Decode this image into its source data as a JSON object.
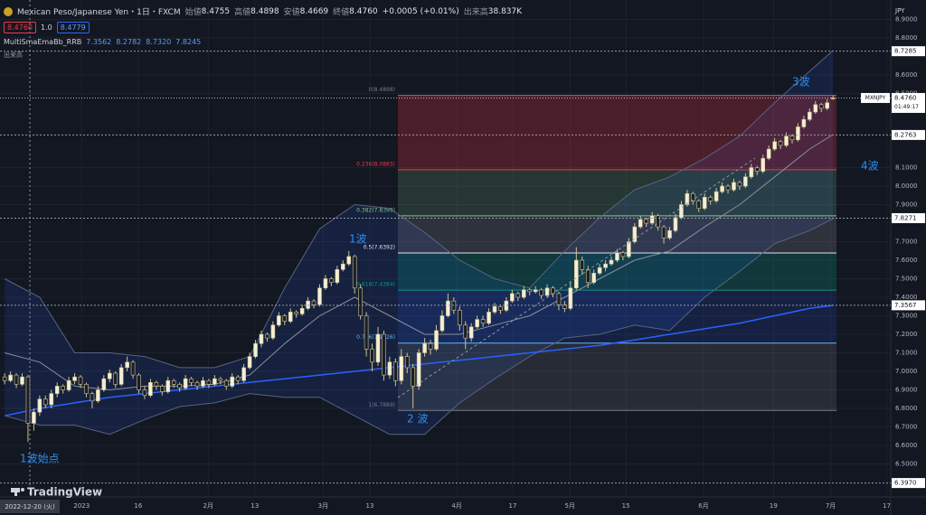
{
  "chart_data": {
    "type": "candlestick",
    "header": {
      "title": "Mexican Peso/Japanese Yen・1日・FXCM",
      "ohlc": [
        {
          "label": "始値",
          "value": "8.4755"
        },
        {
          "label": "高値",
          "value": "8.4898"
        },
        {
          "label": "安値",
          "value": "8.4669"
        },
        {
          "label": "終値",
          "value": "8.4760"
        }
      ],
      "change": "+0.0005 (+0.01%)",
      "volume_label": "出来高",
      "volume": "38.837K",
      "sell": "8.4760",
      "spread": "1.0",
      "buy": "8.4779",
      "indicator": "MultiSmaEmaBb_RRB",
      "indicator_values": [
        "7.3562",
        "8.2782",
        "8.7320",
        "7.8245"
      ],
      "volume_pane": "出来高"
    },
    "currency": "JPY",
    "xlim": [
      -0.8,
      151.9
    ],
    "ylim": [
      6.322,
      9.005
    ],
    "grid": true,
    "xticks": [
      {
        "value": 13.2,
        "label": "2023"
      },
      {
        "value": 22.9,
        "label": "16"
      },
      {
        "value": 34.9,
        "label": "2月"
      },
      {
        "value": 42.9,
        "label": "13"
      },
      {
        "value": 54.6,
        "label": "3月"
      },
      {
        "value": 62.6,
        "label": "13"
      },
      {
        "value": 77.5,
        "label": "4月"
      },
      {
        "value": 87.1,
        "label": "17"
      },
      {
        "value": 96.9,
        "label": "5月"
      },
      {
        "value": 106.5,
        "label": "15"
      },
      {
        "value": 119.8,
        "label": "6月"
      },
      {
        "value": 131.8,
        "label": "19"
      },
      {
        "value": 141.6,
        "label": "7月"
      },
      {
        "value": 151.2,
        "label": "17"
      }
    ],
    "yticks": [
      {
        "value": 8.9,
        "label": "8.9000"
      },
      {
        "value": 8.8,
        "label": "8.8000"
      },
      {
        "value": 8.6,
        "label": "8.6000"
      },
      {
        "value": 8.5,
        "label": "8.5000"
      },
      {
        "value": 8.1,
        "label": "8.1000"
      },
      {
        "value": 8.0,
        "label": "8.0000"
      },
      {
        "value": 7.9,
        "label": "7.9000"
      },
      {
        "value": 7.7,
        "label": "7.7000"
      },
      {
        "value": 7.6,
        "label": "7.6000"
      },
      {
        "value": 7.5,
        "label": "7.5000"
      },
      {
        "value": 7.4,
        "label": "7.4000"
      },
      {
        "value": 7.3,
        "label": "7.3000"
      },
      {
        "value": 7.2,
        "label": "7.2000"
      },
      {
        "value": 7.1,
        "label": "7.1000"
      },
      {
        "value": 7.0,
        "label": "7.0000"
      },
      {
        "value": 6.9,
        "label": "6.9000"
      },
      {
        "value": 6.8,
        "label": "6.8000"
      },
      {
        "value": 6.7,
        "label": "6.7000"
      },
      {
        "value": 6.6,
        "label": "6.6000"
      },
      {
        "value": 6.5,
        "label": "6.5000"
      }
    ],
    "up_color": "#f5efd6",
    "down_color": "#1b1d27",
    "wick_color": "#cfc48e",
    "candles": [
      [
        6.97,
        6.99,
        6.93,
        6.95
      ],
      [
        6.95,
        7.0,
        6.94,
        6.98
      ],
      [
        6.98,
        6.99,
        6.91,
        6.93
      ],
      [
        6.93,
        6.99,
        6.92,
        6.97
      ],
      [
        6.97,
        6.98,
        6.62,
        6.72
      ],
      [
        6.72,
        6.8,
        6.68,
        6.78
      ],
      [
        6.78,
        6.87,
        6.76,
        6.85
      ],
      [
        6.85,
        6.87,
        6.8,
        6.82
      ],
      [
        6.82,
        6.9,
        6.8,
        6.88
      ],
      [
        6.88,
        6.94,
        6.86,
        6.92
      ],
      [
        6.92,
        6.93,
        6.88,
        6.9
      ],
      [
        6.9,
        6.97,
        6.89,
        6.95
      ],
      [
        6.95,
        6.99,
        6.93,
        6.97
      ],
      [
        6.97,
        6.98,
        6.91,
        6.93
      ],
      [
        6.93,
        6.94,
        6.86,
        6.88
      ],
      [
        6.88,
        6.89,
        6.8,
        6.84
      ],
      [
        6.84,
        6.92,
        6.83,
        6.9
      ],
      [
        6.9,
        6.98,
        6.89,
        6.96
      ],
      [
        6.96,
        7.01,
        6.94,
        6.99
      ],
      [
        6.99,
        7.0,
        6.91,
        6.93
      ],
      [
        6.93,
        7.04,
        6.92,
        7.02
      ],
      [
        7.02,
        7.08,
        7.0,
        7.05
      ],
      [
        7.05,
        7.06,
        6.96,
        6.98
      ],
      [
        6.98,
        6.99,
        6.88,
        6.9
      ],
      [
        6.9,
        6.92,
        6.85,
        6.87
      ],
      [
        6.87,
        6.96,
        6.86,
        6.94
      ],
      [
        6.94,
        6.95,
        6.9,
        6.92
      ],
      [
        6.92,
        6.93,
        6.87,
        6.89
      ],
      [
        6.89,
        6.97,
        6.88,
        6.95
      ],
      [
        6.95,
        6.96,
        6.91,
        6.93
      ],
      [
        6.93,
        6.94,
        6.89,
        6.91
      ],
      [
        6.91,
        6.98,
        6.9,
        6.96
      ],
      [
        6.96,
        6.97,
        6.92,
        6.94
      ],
      [
        6.94,
        6.95,
        6.9,
        6.92
      ],
      [
        6.92,
        6.97,
        6.91,
        6.95
      ],
      [
        6.95,
        6.96,
        6.91,
        6.93
      ],
      [
        6.93,
        6.98,
        6.92,
        6.96
      ],
      [
        6.96,
        6.97,
        6.93,
        6.95
      ],
      [
        6.95,
        6.96,
        6.9,
        6.92
      ],
      [
        6.92,
        6.99,
        6.91,
        6.97
      ],
      [
        6.97,
        6.98,
        6.93,
        6.95
      ],
      [
        6.95,
        7.04,
        6.94,
        7.02
      ],
      [
        7.02,
        7.1,
        7.01,
        7.08
      ],
      [
        7.08,
        7.17,
        7.07,
        7.15
      ],
      [
        7.15,
        7.22,
        7.13,
        7.2
      ],
      [
        7.2,
        7.21,
        7.16,
        7.18
      ],
      [
        7.18,
        7.27,
        7.17,
        7.25
      ],
      [
        7.25,
        7.32,
        7.24,
        7.3
      ],
      [
        7.3,
        7.31,
        7.25,
        7.27
      ],
      [
        7.27,
        7.34,
        7.26,
        7.32
      ],
      [
        7.32,
        7.33,
        7.29,
        7.31
      ],
      [
        7.31,
        7.36,
        7.3,
        7.34
      ],
      [
        7.34,
        7.4,
        7.33,
        7.38
      ],
      [
        7.38,
        7.39,
        7.34,
        7.36
      ],
      [
        7.36,
        7.47,
        7.35,
        7.45
      ],
      [
        7.45,
        7.52,
        7.44,
        7.5
      ],
      [
        7.5,
        7.51,
        7.46,
        7.48
      ],
      [
        7.48,
        7.57,
        7.47,
        7.55
      ],
      [
        7.55,
        7.6,
        7.54,
        7.58
      ],
      [
        7.58,
        7.65,
        7.57,
        7.62
      ],
      [
        7.62,
        7.63,
        7.42,
        7.45
      ],
      [
        7.45,
        7.47,
        7.28,
        7.3
      ],
      [
        7.3,
        7.32,
        7.08,
        7.12
      ],
      [
        7.12,
        7.15,
        7.0,
        7.05
      ],
      [
        7.05,
        7.24,
        7.03,
        7.2
      ],
      [
        7.2,
        7.22,
        6.95,
        6.98
      ],
      [
        6.98,
        7.08,
        6.96,
        7.05
      ],
      [
        7.05,
        7.07,
        6.92,
        6.95
      ],
      [
        6.95,
        7.12,
        6.93,
        7.08
      ],
      [
        7.08,
        7.1,
        6.99,
        7.02
      ],
      [
        7.02,
        7.04,
        6.8,
        6.92
      ],
      [
        6.92,
        7.12,
        6.9,
        7.1
      ],
      [
        7.1,
        7.18,
        7.08,
        7.15
      ],
      [
        7.15,
        7.17,
        7.09,
        7.12
      ],
      [
        7.12,
        7.25,
        7.11,
        7.22
      ],
      [
        7.22,
        7.33,
        7.21,
        7.3
      ],
      [
        7.3,
        7.42,
        7.29,
        7.38
      ],
      [
        7.38,
        7.4,
        7.31,
        7.33
      ],
      [
        7.33,
        7.35,
        7.22,
        7.25
      ],
      [
        7.25,
        7.27,
        7.12,
        7.18
      ],
      [
        7.18,
        7.26,
        7.16,
        7.24
      ],
      [
        7.24,
        7.3,
        7.23,
        7.28
      ],
      [
        7.28,
        7.3,
        7.24,
        7.26
      ],
      [
        7.26,
        7.34,
        7.25,
        7.32
      ],
      [
        7.32,
        7.37,
        7.31,
        7.35
      ],
      [
        7.35,
        7.36,
        7.31,
        7.33
      ],
      [
        7.33,
        7.4,
        7.32,
        7.38
      ],
      [
        7.38,
        7.44,
        7.37,
        7.42
      ],
      [
        7.42,
        7.43,
        7.38,
        7.4
      ],
      [
        7.4,
        7.46,
        7.39,
        7.44
      ],
      [
        7.44,
        7.45,
        7.41,
        7.43
      ],
      [
        7.43,
        7.46,
        7.42,
        7.44
      ],
      [
        7.44,
        7.45,
        7.39,
        7.41
      ],
      [
        7.41,
        7.47,
        7.4,
        7.45
      ],
      [
        7.45,
        7.46,
        7.4,
        7.42
      ],
      [
        7.42,
        7.43,
        7.33,
        7.36
      ],
      [
        7.36,
        7.38,
        7.32,
        7.34
      ],
      [
        7.34,
        7.48,
        7.33,
        7.45
      ],
      [
        7.45,
        7.67,
        7.44,
        7.6
      ],
      [
        7.6,
        7.62,
        7.52,
        7.55
      ],
      [
        7.55,
        7.57,
        7.45,
        7.48
      ],
      [
        7.48,
        7.55,
        7.47,
        7.53
      ],
      [
        7.53,
        7.58,
        7.52,
        7.56
      ],
      [
        7.56,
        7.6,
        7.54,
        7.58
      ],
      [
        7.58,
        7.62,
        7.57,
        7.6
      ],
      [
        7.6,
        7.66,
        7.59,
        7.64
      ],
      [
        7.64,
        7.65,
        7.6,
        7.62
      ],
      [
        7.62,
        7.72,
        7.61,
        7.7
      ],
      [
        7.7,
        7.8,
        7.69,
        7.78
      ],
      [
        7.78,
        7.84,
        7.77,
        7.82
      ],
      [
        7.82,
        7.83,
        7.78,
        7.8
      ],
      [
        7.8,
        7.86,
        7.79,
        7.84
      ],
      [
        7.84,
        7.85,
        7.76,
        7.78
      ],
      [
        7.78,
        7.79,
        7.69,
        7.72
      ],
      [
        7.72,
        7.78,
        7.71,
        7.76
      ],
      [
        7.76,
        7.85,
        7.75,
        7.83
      ],
      [
        7.83,
        7.92,
        7.82,
        7.9
      ],
      [
        7.9,
        7.98,
        7.89,
        7.96
      ],
      [
        7.96,
        7.97,
        7.9,
        7.92
      ],
      [
        7.92,
        7.93,
        7.86,
        7.88
      ],
      [
        7.88,
        7.96,
        7.87,
        7.94
      ],
      [
        7.94,
        7.95,
        7.9,
        7.92
      ],
      [
        7.92,
        7.99,
        7.91,
        7.97
      ],
      [
        7.97,
        8.02,
        7.96,
        8.0
      ],
      [
        8.0,
        8.01,
        7.96,
        7.98
      ],
      [
        7.98,
        8.04,
        7.97,
        8.02
      ],
      [
        8.02,
        8.03,
        7.98,
        8.0
      ],
      [
        8.0,
        8.07,
        7.99,
        8.05
      ],
      [
        8.05,
        8.12,
        8.04,
        8.1
      ],
      [
        8.1,
        8.11,
        8.06,
        8.08
      ],
      [
        8.08,
        8.17,
        8.07,
        8.15
      ],
      [
        8.15,
        8.22,
        8.14,
        8.2
      ],
      [
        8.2,
        8.26,
        8.19,
        8.24
      ],
      [
        8.24,
        8.25,
        8.2,
        8.22
      ],
      [
        8.22,
        8.29,
        8.21,
        8.27
      ],
      [
        8.27,
        8.28,
        8.23,
        8.25
      ],
      [
        8.25,
        8.34,
        8.24,
        8.32
      ],
      [
        8.32,
        8.38,
        8.31,
        8.36
      ],
      [
        8.36,
        8.42,
        8.35,
        8.4
      ],
      [
        8.4,
        8.46,
        8.39,
        8.44
      ],
      [
        8.44,
        8.45,
        8.4,
        8.42
      ],
      [
        8.42,
        8.47,
        8.41,
        8.45
      ],
      [
        8.4755,
        8.4898,
        8.4669,
        8.476
      ]
    ],
    "bands": {
      "x": [
        0,
        6,
        12,
        18,
        24,
        30,
        36,
        42,
        48,
        54,
        60,
        66,
        72,
        78,
        84,
        90,
        96,
        102,
        108,
        114,
        120,
        126,
        132,
        138,
        142
      ],
      "upper": [
        7.5,
        7.4,
        7.1,
        7.1,
        7.08,
        7.02,
        7.02,
        7.08,
        7.45,
        7.77,
        7.9,
        7.88,
        7.75,
        7.6,
        7.5,
        7.45,
        7.65,
        7.83,
        7.98,
        8.05,
        8.15,
        8.27,
        8.45,
        8.62,
        8.732
      ],
      "middle": [
        7.1,
        7.05,
        6.92,
        6.9,
        6.92,
        6.92,
        6.93,
        6.98,
        7.15,
        7.3,
        7.4,
        7.3,
        7.2,
        7.2,
        7.25,
        7.3,
        7.4,
        7.5,
        7.6,
        7.65,
        7.78,
        7.9,
        8.05,
        8.2,
        8.2782
      ],
      "lower": [
        6.76,
        6.71,
        6.71,
        6.66,
        6.74,
        6.81,
        6.83,
        6.88,
        6.86,
        6.86,
        6.76,
        6.66,
        6.66,
        6.83,
        6.96,
        7.08,
        7.18,
        7.2,
        7.25,
        7.22,
        7.4,
        7.54,
        7.69,
        7.76,
        7.8245
      ],
      "band_color": "#56647f",
      "fill": "rgba(41,98,255,0.13)",
      "middle_color": "#8a8f9c"
    },
    "ma": {
      "x": [
        0,
        6,
        12,
        18,
        24,
        30,
        36,
        42,
        48,
        54,
        60,
        66,
        72,
        78,
        84,
        90,
        96,
        102,
        108,
        114,
        120,
        126,
        132,
        138,
        142
      ],
      "values": [
        6.76,
        6.8,
        6.83,
        6.86,
        6.88,
        6.9,
        6.92,
        6.94,
        6.96,
        6.98,
        7.0,
        7.02,
        7.04,
        7.06,
        7.08,
        7.1,
        7.12,
        7.14,
        7.17,
        7.2,
        7.23,
        7.26,
        7.3,
        7.34,
        7.3562
      ],
      "color": "#2962ff"
    },
    "fib": {
      "levels": [
        {
          "price": 8.4898,
          "label": "0(8.4898)",
          "color": "#787b86"
        },
        {
          "price": 8.0883,
          "label": "0.236(8.0883)",
          "color": "#f23645"
        },
        {
          "price": 7.8399,
          "label": "0.382(7.8399)",
          "color": "#81c784"
        },
        {
          "price": 7.6392,
          "label": "0.5(7.6392)",
          "color": "#e0e3eb"
        },
        {
          "price": 7.4384,
          "label": "0.618(7.4384)",
          "color": "#089981"
        },
        {
          "price": 7.1526,
          "label": "0.786(7.1526)",
          "color": "#64b5f6"
        },
        {
          "price": 6.7889,
          "label": "1(6.7889)",
          "color": "#787b86"
        }
      ],
      "fills": [
        "rgba(242,54,69,0.25)",
        "rgba(129,199,132,0.18)",
        "rgba(120,123,134,0.28)",
        "rgba(8,153,129,0.25)",
        "rgba(41,98,255,0.14)",
        "rgba(120,123,134,0.2)"
      ]
    },
    "price_lines": [
      8.7285,
      8.2763,
      7.8271,
      7.3567,
      {
        "value": 6.397,
        "label": "6.3970"
      }
    ],
    "last": {
      "symbol": "MXNJPY",
      "price": {
        "value": 8.476,
        "label": "8.4760"
      },
      "countdown": "01:49:17"
    },
    "annotations": [
      "1波始点",
      "1波",
      "2 波",
      "3波",
      "4波"
    ],
    "crosshair_date": "2022-12-20 (火)",
    "brand": "TradingView"
  }
}
